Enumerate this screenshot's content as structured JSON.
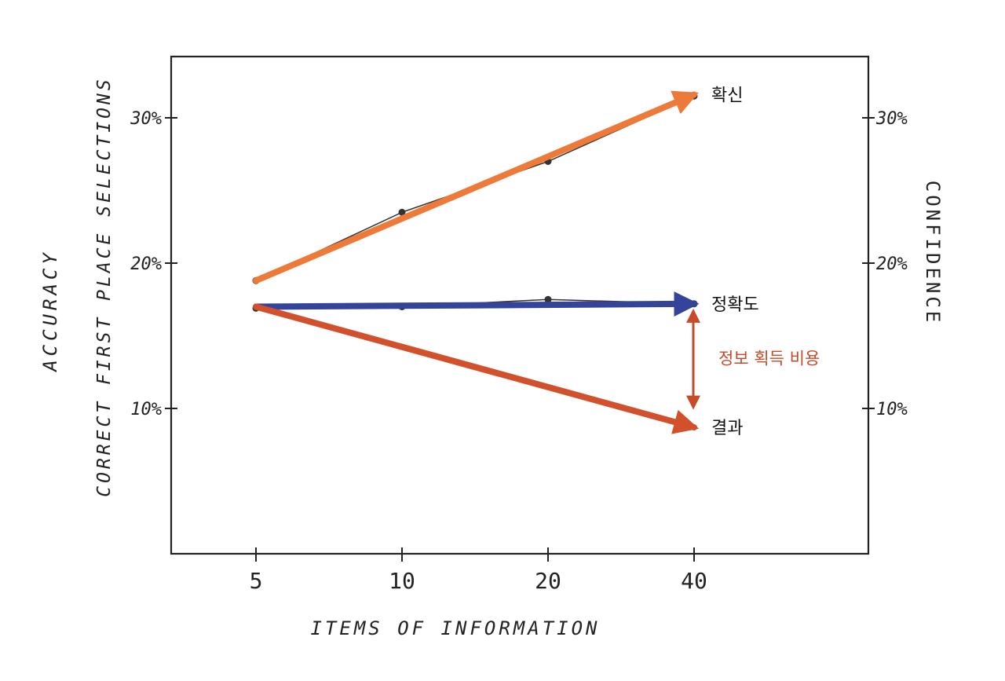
{
  "chart_data": {
    "type": "line",
    "x": [
      5,
      10,
      20,
      40
    ],
    "xlabel": "ITEMS OF INFORMATION",
    "ylabel_outer": "ACCURACY",
    "ylabel_inner": "CORRECT FIRST PLACE SELECTIONS",
    "ylabel_right": "CONFIDENCE",
    "ylim": [
      0,
      34
    ],
    "yticks": [
      {
        "value": 10,
        "label": "10%"
      },
      {
        "value": 20,
        "label": "20%"
      },
      {
        "value": 30,
        "label": "30%"
      }
    ],
    "xticks": [
      {
        "value": 5,
        "label": "5"
      },
      {
        "value": 10,
        "label": "10"
      },
      {
        "value": 20,
        "label": "20"
      },
      {
        "value": 40,
        "label": "40"
      }
    ],
    "hand_series": [
      {
        "name": "confidence",
        "x": [
          5,
          10,
          20,
          40
        ],
        "values": [
          18.8,
          23.5,
          27,
          31.5
        ]
      },
      {
        "name": "accuracy",
        "x": [
          5,
          10,
          20,
          40
        ],
        "values": [
          16.9,
          17,
          17.5,
          17.2
        ]
      }
    ],
    "series": [
      {
        "name": "확신",
        "color": "#EE7A3A",
        "x": [
          5,
          40
        ],
        "values": [
          18.8,
          31.6
        ]
      },
      {
        "name": "정확도",
        "color": "#33449A",
        "x": [
          5,
          40
        ],
        "values": [
          17.0,
          17.2
        ]
      },
      {
        "name": "결과",
        "color": "#D2502C",
        "x": [
          5,
          40
        ],
        "values": [
          17.0,
          8.7
        ]
      }
    ],
    "annotation": {
      "label": "정보 획득 비용",
      "color": "#C94A2B",
      "x": 40,
      "from": 17.0,
      "to": 10.0
    }
  }
}
